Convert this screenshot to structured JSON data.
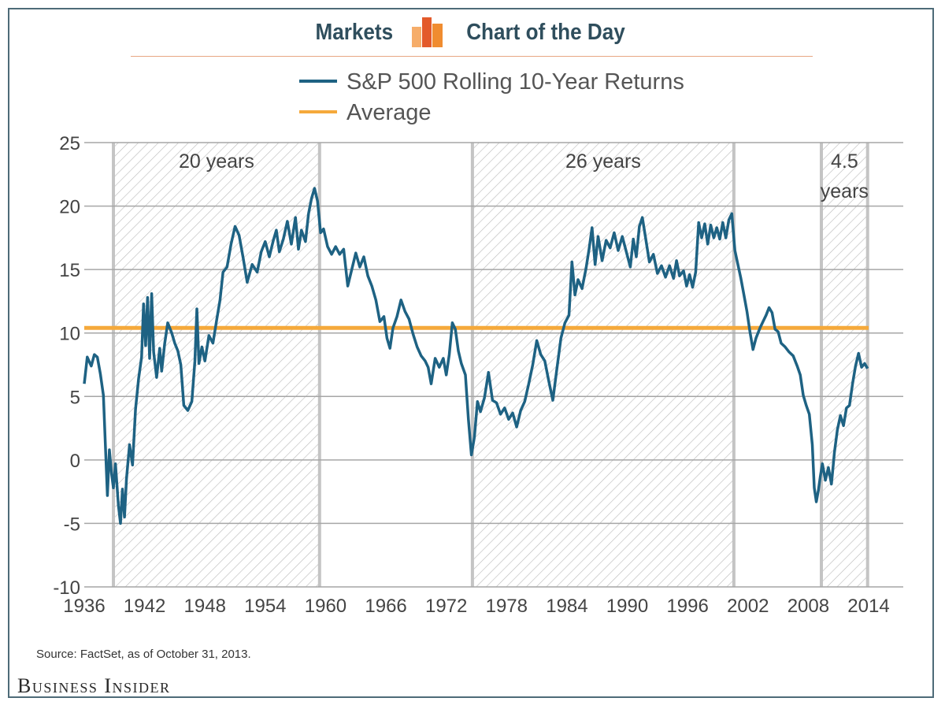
{
  "header": {
    "left_label": "Markets",
    "right_label": "Chart of the Day",
    "logo_icon": "bar-chart-logo-icon",
    "logo_colors": [
      "#f4a460",
      "#e8562a",
      "#f08a2e"
    ]
  },
  "chart_data": {
    "type": "line",
    "title": "",
    "xlabel": "",
    "ylabel": "",
    "xlim": [
      1936,
      2014
    ],
    "ylim": [
      -10,
      25
    ],
    "x_ticks": [
      1936,
      1942,
      1948,
      1954,
      1960,
      1966,
      1972,
      1978,
      1984,
      1990,
      1996,
      2002,
      2008,
      2014
    ],
    "y_ticks": [
      -10,
      -5,
      0,
      5,
      10,
      15,
      20,
      25
    ],
    "legend": {
      "placement": "top-left",
      "entries": [
        {
          "label": "S&P 500 Rolling 10-Year Returns",
          "color": "#1e6283"
        },
        {
          "label": "Average",
          "color": "#f5a93b"
        }
      ]
    },
    "average": 10.4,
    "bull_periods": [
      {
        "start": 1938.9,
        "end": 1959.4,
        "label_lines": [
          "20 years"
        ]
      },
      {
        "start": 1974.6,
        "end": 2000.6,
        "label_lines": [
          "26 years"
        ]
      },
      {
        "start": 2009.3,
        "end": 2013.9,
        "label_lines": [
          "4.5",
          "years"
        ]
      }
    ],
    "series": [
      {
        "name": "S&P 500 Rolling 10-Year Returns",
        "color": "#1e6283",
        "points": [
          [
            1936.0,
            6.0
          ],
          [
            1936.3,
            8.1
          ],
          [
            1936.7,
            7.4
          ],
          [
            1937.0,
            8.3
          ],
          [
            1937.3,
            8.1
          ],
          [
            1937.6,
            6.8
          ],
          [
            1937.9,
            5.1
          ],
          [
            1938.1,
            1.2
          ],
          [
            1938.3,
            -2.8
          ],
          [
            1938.5,
            0.8
          ],
          [
            1938.7,
            -1.0
          ],
          [
            1938.9,
            -2.2
          ],
          [
            1939.1,
            -0.3
          ],
          [
            1939.4,
            -3.6
          ],
          [
            1939.6,
            -5.0
          ],
          [
            1939.8,
            -2.3
          ],
          [
            1940.0,
            -4.5
          ],
          [
            1940.2,
            -1.5
          ],
          [
            1940.5,
            1.2
          ],
          [
            1940.8,
            -0.4
          ],
          [
            1941.1,
            4.0
          ],
          [
            1941.4,
            6.4
          ],
          [
            1941.7,
            8.1
          ],
          [
            1941.9,
            12.3
          ],
          [
            1942.1,
            9.0
          ],
          [
            1942.3,
            12.8
          ],
          [
            1942.5,
            8.0
          ],
          [
            1942.7,
            13.1
          ],
          [
            1942.9,
            8.5
          ],
          [
            1943.2,
            6.5
          ],
          [
            1943.5,
            8.8
          ],
          [
            1943.7,
            7.0
          ],
          [
            1944.0,
            9.2
          ],
          [
            1944.3,
            10.8
          ],
          [
            1944.7,
            10.0
          ],
          [
            1945.0,
            9.2
          ],
          [
            1945.3,
            8.6
          ],
          [
            1945.6,
            7.5
          ],
          [
            1945.9,
            4.3
          ],
          [
            1946.3,
            3.9
          ],
          [
            1946.7,
            4.6
          ],
          [
            1947.0,
            7.8
          ],
          [
            1947.2,
            11.9
          ],
          [
            1947.4,
            7.6
          ],
          [
            1947.7,
            8.9
          ],
          [
            1948.0,
            7.8
          ],
          [
            1948.4,
            9.8
          ],
          [
            1948.8,
            9.2
          ],
          [
            1949.2,
            11.2
          ],
          [
            1949.5,
            12.6
          ],
          [
            1949.8,
            14.8
          ],
          [
            1950.2,
            15.2
          ],
          [
            1950.6,
            17.0
          ],
          [
            1951.0,
            18.4
          ],
          [
            1951.4,
            17.7
          ],
          [
            1951.8,
            15.9
          ],
          [
            1952.2,
            14.0
          ],
          [
            1952.7,
            15.4
          ],
          [
            1953.2,
            14.8
          ],
          [
            1953.6,
            16.4
          ],
          [
            1954.0,
            17.2
          ],
          [
            1954.4,
            16.0
          ],
          [
            1954.8,
            17.3
          ],
          [
            1955.1,
            18.1
          ],
          [
            1955.4,
            16.4
          ],
          [
            1955.8,
            17.4
          ],
          [
            1956.2,
            18.8
          ],
          [
            1956.6,
            17.0
          ],
          [
            1957.0,
            19.1
          ],
          [
            1957.3,
            16.6
          ],
          [
            1957.6,
            18.1
          ],
          [
            1958.0,
            17.2
          ],
          [
            1958.3,
            19.4
          ],
          [
            1958.6,
            20.6
          ],
          [
            1958.9,
            21.4
          ],
          [
            1959.2,
            20.4
          ],
          [
            1959.5,
            17.9
          ],
          [
            1959.8,
            18.2
          ],
          [
            1960.2,
            16.8
          ],
          [
            1960.6,
            16.2
          ],
          [
            1961.0,
            16.8
          ],
          [
            1961.4,
            16.2
          ],
          [
            1961.8,
            16.6
          ],
          [
            1962.2,
            13.7
          ],
          [
            1962.6,
            15.0
          ],
          [
            1963.0,
            16.3
          ],
          [
            1963.4,
            15.2
          ],
          [
            1963.8,
            16.0
          ],
          [
            1964.2,
            14.5
          ],
          [
            1964.6,
            13.7
          ],
          [
            1965.0,
            12.6
          ],
          [
            1965.4,
            10.9
          ],
          [
            1965.8,
            11.3
          ],
          [
            1966.1,
            9.6
          ],
          [
            1966.4,
            8.8
          ],
          [
            1966.7,
            10.4
          ],
          [
            1967.1,
            11.3
          ],
          [
            1967.5,
            12.6
          ],
          [
            1967.9,
            11.7
          ],
          [
            1968.3,
            11.1
          ],
          [
            1968.7,
            9.9
          ],
          [
            1969.1,
            8.9
          ],
          [
            1969.5,
            8.2
          ],
          [
            1969.9,
            7.8
          ],
          [
            1970.2,
            7.3
          ],
          [
            1970.5,
            6.0
          ],
          [
            1970.9,
            8.0
          ],
          [
            1971.3,
            7.3
          ],
          [
            1971.7,
            8.0
          ],
          [
            1972.0,
            6.7
          ],
          [
            1972.3,
            8.3
          ],
          [
            1972.6,
            10.8
          ],
          [
            1972.9,
            10.3
          ],
          [
            1973.2,
            8.6
          ],
          [
            1973.5,
            7.6
          ],
          [
            1973.9,
            6.7
          ],
          [
            1974.2,
            3.2
          ],
          [
            1974.5,
            0.4
          ],
          [
            1974.8,
            1.8
          ],
          [
            1975.1,
            4.6
          ],
          [
            1975.4,
            3.8
          ],
          [
            1975.8,
            4.9
          ],
          [
            1976.2,
            6.9
          ],
          [
            1976.6,
            4.7
          ],
          [
            1977.0,
            4.5
          ],
          [
            1977.4,
            3.6
          ],
          [
            1977.8,
            4.1
          ],
          [
            1978.2,
            3.2
          ],
          [
            1978.6,
            3.7
          ],
          [
            1979.0,
            2.6
          ],
          [
            1979.4,
            3.9
          ],
          [
            1979.8,
            4.6
          ],
          [
            1980.2,
            6.0
          ],
          [
            1980.6,
            7.5
          ],
          [
            1981.0,
            9.4
          ],
          [
            1981.4,
            8.3
          ],
          [
            1981.8,
            7.8
          ],
          [
            1982.2,
            6.2
          ],
          [
            1982.6,
            4.7
          ],
          [
            1983.0,
            7.2
          ],
          [
            1983.4,
            9.6
          ],
          [
            1983.8,
            10.8
          ],
          [
            1984.2,
            11.4
          ],
          [
            1984.5,
            15.6
          ],
          [
            1984.8,
            13.0
          ],
          [
            1985.1,
            14.2
          ],
          [
            1985.5,
            13.5
          ],
          [
            1985.9,
            15.1
          ],
          [
            1986.2,
            16.6
          ],
          [
            1986.5,
            18.3
          ],
          [
            1986.8,
            15.4
          ],
          [
            1987.1,
            17.6
          ],
          [
            1987.5,
            15.7
          ],
          [
            1987.9,
            17.3
          ],
          [
            1988.3,
            16.7
          ],
          [
            1988.7,
            17.9
          ],
          [
            1989.1,
            16.5
          ],
          [
            1989.5,
            17.6
          ],
          [
            1989.9,
            16.4
          ],
          [
            1990.3,
            15.2
          ],
          [
            1990.6,
            17.4
          ],
          [
            1990.9,
            16.0
          ],
          [
            1991.2,
            18.4
          ],
          [
            1991.5,
            19.1
          ],
          [
            1991.8,
            17.6
          ],
          [
            1992.2,
            15.6
          ],
          [
            1992.6,
            16.2
          ],
          [
            1993.0,
            14.7
          ],
          [
            1993.4,
            15.3
          ],
          [
            1993.8,
            14.4
          ],
          [
            1994.2,
            15.3
          ],
          [
            1994.6,
            14.3
          ],
          [
            1994.9,
            15.7
          ],
          [
            1995.2,
            14.5
          ],
          [
            1995.6,
            14.9
          ],
          [
            1995.9,
            13.7
          ],
          [
            1996.2,
            14.6
          ],
          [
            1996.5,
            13.6
          ],
          [
            1996.8,
            14.8
          ],
          [
            1997.1,
            18.7
          ],
          [
            1997.4,
            17.5
          ],
          [
            1997.7,
            18.6
          ],
          [
            1998.0,
            17.0
          ],
          [
            1998.3,
            18.5
          ],
          [
            1998.6,
            17.5
          ],
          [
            1998.9,
            18.3
          ],
          [
            1999.2,
            17.4
          ],
          [
            1999.5,
            18.7
          ],
          [
            1999.8,
            17.5
          ],
          [
            2000.1,
            18.9
          ],
          [
            2000.4,
            19.4
          ],
          [
            2000.7,
            16.5
          ],
          [
            2001.0,
            15.4
          ],
          [
            2001.3,
            14.3
          ],
          [
            2001.6,
            13.0
          ],
          [
            2001.9,
            11.7
          ],
          [
            2002.2,
            10.1
          ],
          [
            2002.5,
            8.7
          ],
          [
            2002.8,
            9.6
          ],
          [
            2003.2,
            10.4
          ],
          [
            2003.5,
            10.9
          ],
          [
            2003.8,
            11.4
          ],
          [
            2004.1,
            12.0
          ],
          [
            2004.4,
            11.6
          ],
          [
            2004.7,
            10.3
          ],
          [
            2005.0,
            10.1
          ],
          [
            2005.3,
            9.2
          ],
          [
            2005.7,
            8.9
          ],
          [
            2006.1,
            8.5
          ],
          [
            2006.5,
            8.2
          ],
          [
            2006.9,
            7.4
          ],
          [
            2007.2,
            6.7
          ],
          [
            2007.5,
            5.1
          ],
          [
            2007.8,
            4.3
          ],
          [
            2008.1,
            3.6
          ],
          [
            2008.4,
            1.2
          ],
          [
            2008.6,
            -2.2
          ],
          [
            2008.8,
            -3.3
          ],
          [
            2009.0,
            -2.4
          ],
          [
            2009.2,
            -1.3
          ],
          [
            2009.4,
            -0.3
          ],
          [
            2009.7,
            -1.6
          ],
          [
            2010.0,
            -0.6
          ],
          [
            2010.3,
            -1.9
          ],
          [
            2010.6,
            0.6
          ],
          [
            2010.9,
            2.4
          ],
          [
            2011.2,
            3.5
          ],
          [
            2011.5,
            2.7
          ],
          [
            2011.8,
            4.1
          ],
          [
            2012.1,
            4.3
          ],
          [
            2012.4,
            6.0
          ],
          [
            2012.7,
            7.4
          ],
          [
            2013.0,
            8.4
          ],
          [
            2013.3,
            7.3
          ],
          [
            2013.6,
            7.6
          ],
          [
            2013.9,
            7.2
          ]
        ]
      }
    ],
    "source": "Source: FactSet, as of October 31, 2013."
  },
  "brand": "Business Insider"
}
